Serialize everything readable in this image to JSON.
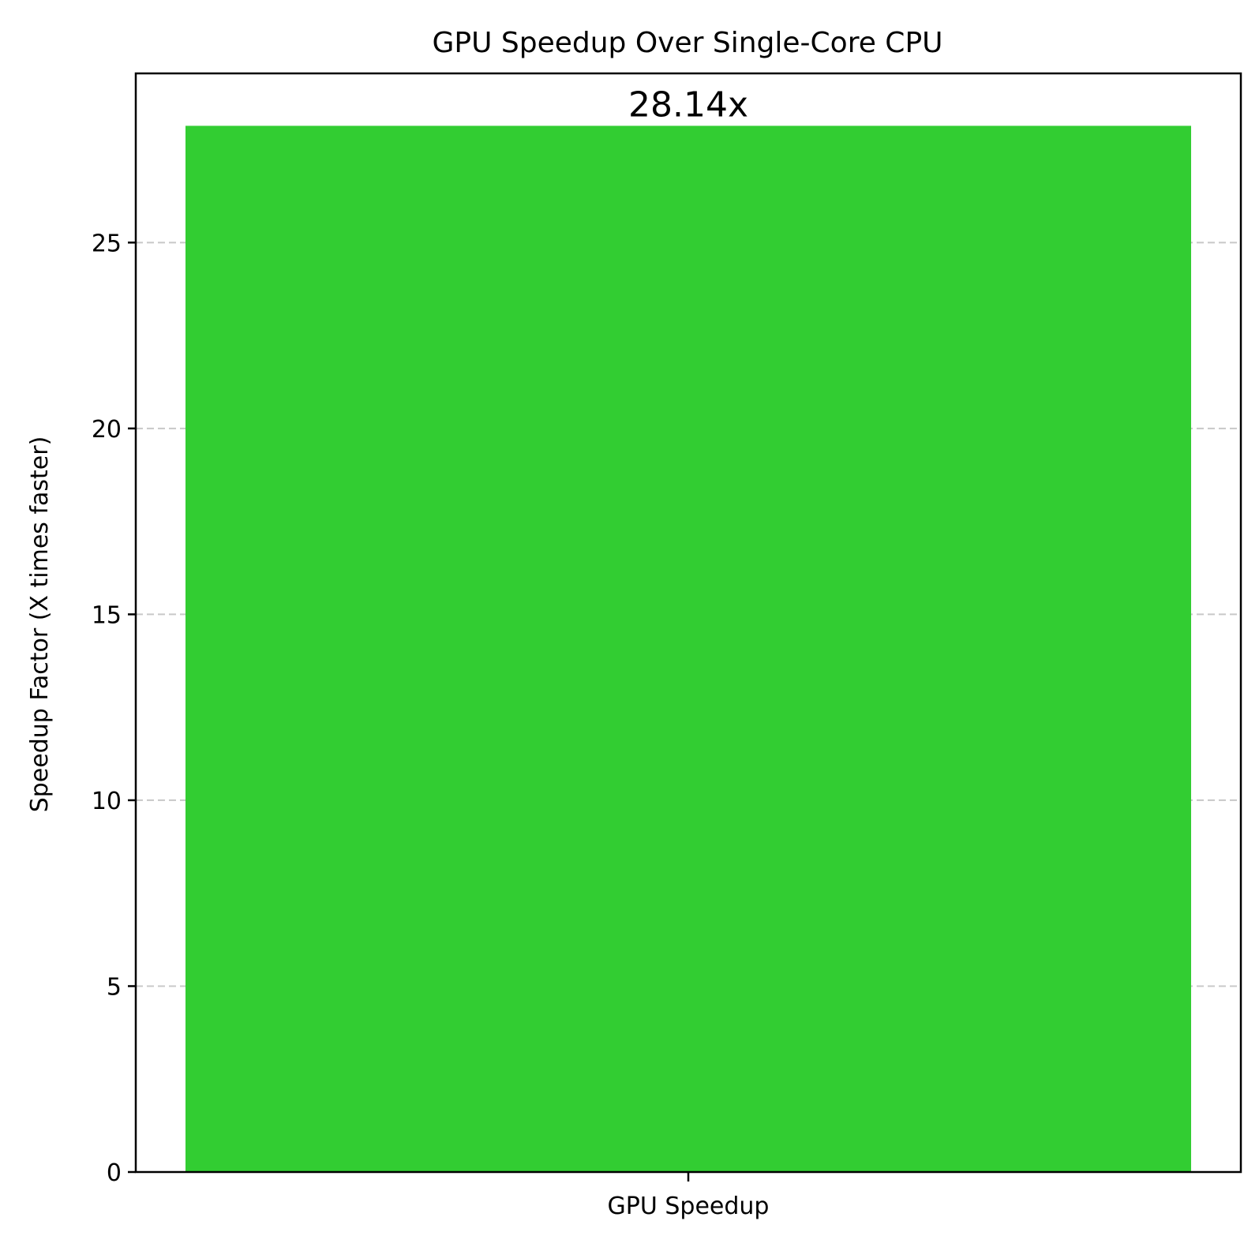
{
  "chart_data": {
    "type": "bar",
    "title": "GPU Speedup Over Single-Core CPU",
    "xlabel": "",
    "ylabel": "Speedup Factor (X times faster)",
    "categories": [
      "GPU Speedup"
    ],
    "values": [
      28.14
    ],
    "data_labels": [
      "28.14x"
    ],
    "ylim": [
      0,
      29.55
    ],
    "yticks": [
      0,
      5,
      10,
      15,
      20,
      25
    ],
    "ytick_labels": [
      "0",
      "5",
      "10",
      "15",
      "20",
      "25"
    ],
    "grid": "y-dashed",
    "legend": "none",
    "colors": {
      "bar": "#32cd32",
      "grid": "#c8c8c8",
      "axes": "#000000"
    }
  }
}
